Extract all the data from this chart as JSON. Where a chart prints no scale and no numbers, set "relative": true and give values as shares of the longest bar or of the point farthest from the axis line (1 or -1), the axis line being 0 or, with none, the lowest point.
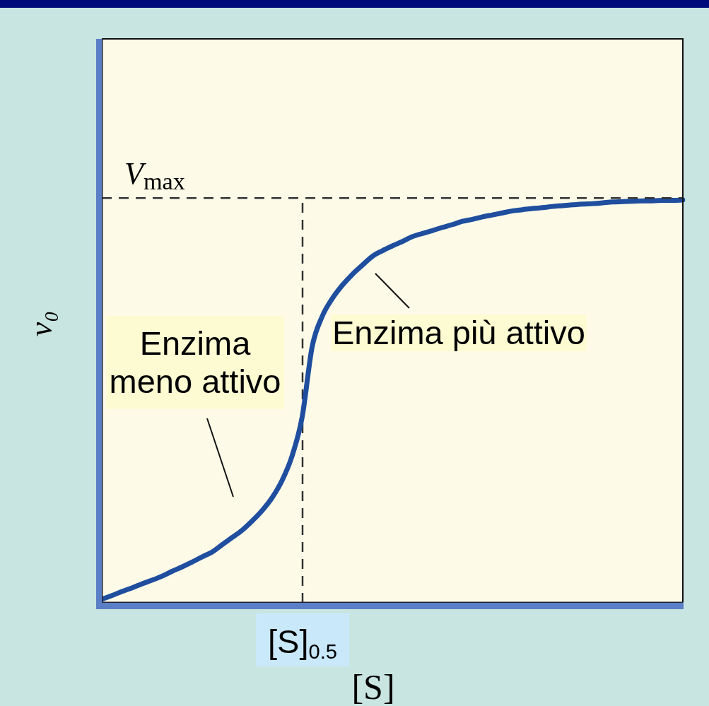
{
  "chart_data": {
    "type": "line",
    "xlabel": "[S]",
    "ylabel": "v₀",
    "relative": true,
    "categories": [
      null,
      null,
      null,
      null,
      null,
      null,
      null,
      null,
      null,
      null,
      null,
      null,
      null,
      null,
      null,
      null,
      null,
      null,
      null,
      null,
      null,
      null,
      null,
      null,
      null,
      null,
      null,
      null,
      null,
      null,
      null,
      null,
      null,
      null,
      null,
      null,
      null,
      null,
      null,
      null,
      null,
      null,
      null,
      null,
      null,
      null,
      null,
      null,
      null,
      null,
      null,
      null,
      null,
      null,
      null,
      null,
      null,
      null,
      null
    ],
    "values": [
      0.009,
      0.018,
      0.028,
      0.037,
      0.047,
      0.056,
      0.066,
      0.078,
      0.089,
      0.101,
      0.114,
      0.126,
      0.144,
      0.162,
      0.18,
      0.203,
      0.229,
      0.261,
      0.304,
      0.365,
      0.461,
      0.636,
      0.711,
      0.755,
      0.788,
      0.815,
      0.838,
      0.86,
      0.874,
      0.886,
      0.897,
      0.909,
      0.917,
      0.924,
      0.932,
      0.939,
      0.947,
      0.952,
      0.958,
      0.963,
      0.968,
      0.973,
      0.976,
      0.979,
      0.981,
      0.984,
      0.986,
      0.988,
      0.99,
      0.991,
      0.993,
      0.995,
      0.996,
      0.997,
      0.998,
      0.998,
      0.999,
      0.999,
      1.0
    ],
    "color": "#1f4e9f",
    "ref_lines": [
      {
        "axis": "y",
        "value": 1.005,
        "label": "V$_{max}$",
        "line_style": "dashed",
        "color": "#333333"
      }
    ],
    "annotations": [
      "Enzima meno attivo",
      "Enzima più attivo",
      "[S]$_{0.5}$"
    ]
  }
}
